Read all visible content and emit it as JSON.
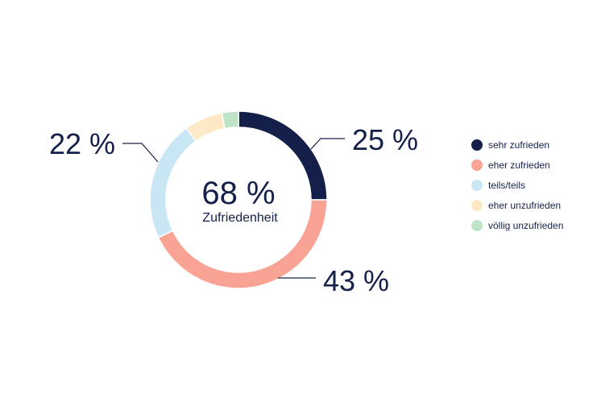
{
  "chart_data": {
    "type": "pie",
    "variant": "donut",
    "center": {
      "value": "68 %",
      "label": "Zufriedenheit"
    },
    "slices": [
      {
        "name": "sehr zufrieden",
        "value": 25,
        "label": "25 %",
        "color": "#14204a"
      },
      {
        "name": "eher zufrieden",
        "value": 43,
        "label": "43 %",
        "color": "#f8a394"
      },
      {
        "name": "teils/teils",
        "value": 22,
        "label": "22 %",
        "color": "#c9e6f5"
      },
      {
        "name": "eher unzufrieden",
        "value": 7,
        "label": "",
        "color": "#fde9c6"
      },
      {
        "name": "völlig unzufrieden",
        "value": 3,
        "label": "",
        "color": "#bfe3c7"
      }
    ],
    "legend_position": "right"
  }
}
